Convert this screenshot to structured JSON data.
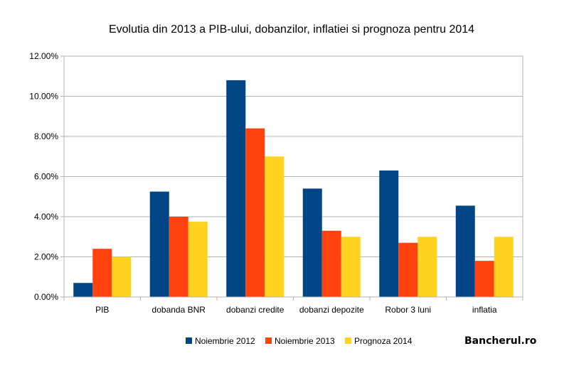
{
  "chart_data": {
    "type": "bar",
    "title": "Evolutia din 2013 a PIB-ului, dobanzilor, inflatiei si prognoza pentru 2014",
    "xlabel": "",
    "ylabel": "",
    "ylim": [
      0,
      12
    ],
    "yticks": [
      "0.00%",
      "2.00%",
      "4.00%",
      "6.00%",
      "8.00%",
      "10.00%",
      "12.00%"
    ],
    "grid": true,
    "legend_position": "bottom",
    "categories": [
      "PIB",
      "dobanda BNR",
      "dobanzi credite",
      "dobanzi depozite",
      "Robor 3 luni",
      "inflatia"
    ],
    "series": [
      {
        "name": "Noiembrie 2012",
        "color": "#004586",
        "values": [
          0.7,
          5.25,
          10.8,
          5.4,
          6.3,
          4.55
        ]
      },
      {
        "name": "Noiembrie 2013",
        "color": "#ff420e",
        "values": [
          2.4,
          4.0,
          8.4,
          3.3,
          2.7,
          1.8
        ]
      },
      {
        "name": "Prognoza 2014",
        "color": "#ffd320",
        "values": [
          2.0,
          3.75,
          7.0,
          3.0,
          3.0,
          3.0
        ]
      }
    ]
  },
  "watermark": "Bancherul.ro"
}
